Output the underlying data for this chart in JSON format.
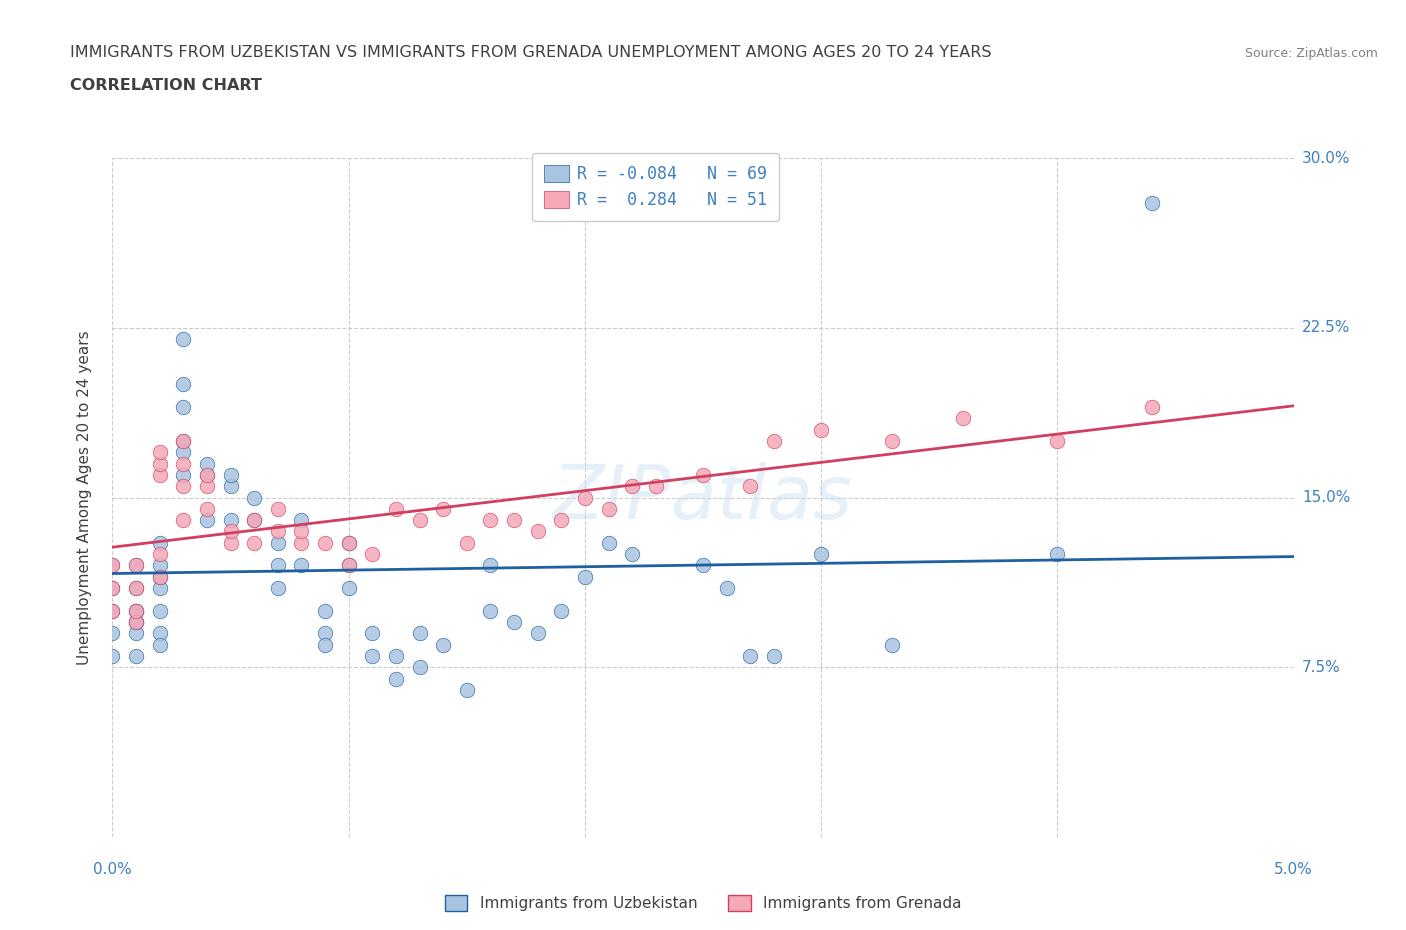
{
  "title_line1": "IMMIGRANTS FROM UZBEKISTAN VS IMMIGRANTS FROM GRENADA UNEMPLOYMENT AMONG AGES 20 TO 24 YEARS",
  "title_line2": "CORRELATION CHART",
  "source": "Source: ZipAtlas.com",
  "ylabel": "Unemployment Among Ages 20 to 24 years",
  "x_min": 0.0,
  "x_max": 0.05,
  "y_min": 0.0,
  "y_max": 0.3,
  "x_ticks": [
    0.0,
    0.01,
    0.02,
    0.03,
    0.04,
    0.05
  ],
  "y_ticks": [
    0.0,
    0.075,
    0.15,
    0.225,
    0.3
  ],
  "y_tick_labels": [
    "",
    "7.5%",
    "15.0%",
    "22.5%",
    "30.0%"
  ],
  "color_uzbekistan": "#a8c4e0",
  "color_grenada": "#f4a8b8",
  "line_color_uzbekistan": "#2060a0",
  "line_color_grenada": "#d04060",
  "R_uzbekistan": -0.084,
  "N_uzbekistan": 69,
  "R_grenada": 0.284,
  "N_grenada": 51,
  "legend_label_uzbekistan": "Immigrants from Uzbekistan",
  "legend_label_grenada": "Immigrants from Grenada",
  "uzbekistan_x": [
    0.0,
    0.0,
    0.0,
    0.0,
    0.0,
    0.001,
    0.001,
    0.001,
    0.001,
    0.001,
    0.001,
    0.001,
    0.001,
    0.002,
    0.002,
    0.002,
    0.002,
    0.002,
    0.002,
    0.002,
    0.003,
    0.003,
    0.003,
    0.003,
    0.003,
    0.003,
    0.004,
    0.004,
    0.004,
    0.005,
    0.005,
    0.005,
    0.006,
    0.006,
    0.007,
    0.007,
    0.007,
    0.008,
    0.008,
    0.009,
    0.009,
    0.009,
    0.01,
    0.01,
    0.01,
    0.011,
    0.011,
    0.012,
    0.012,
    0.013,
    0.013,
    0.014,
    0.015,
    0.016,
    0.016,
    0.017,
    0.018,
    0.019,
    0.02,
    0.021,
    0.022,
    0.025,
    0.026,
    0.027,
    0.028,
    0.03,
    0.033,
    0.04,
    0.044
  ],
  "uzbekistan_y": [
    0.09,
    0.1,
    0.11,
    0.12,
    0.08,
    0.1,
    0.11,
    0.12,
    0.095,
    0.08,
    0.09,
    0.1,
    0.095,
    0.1,
    0.11,
    0.115,
    0.12,
    0.09,
    0.085,
    0.13,
    0.16,
    0.175,
    0.17,
    0.19,
    0.2,
    0.22,
    0.14,
    0.16,
    0.165,
    0.14,
    0.155,
    0.16,
    0.14,
    0.15,
    0.13,
    0.12,
    0.11,
    0.14,
    0.12,
    0.1,
    0.09,
    0.085,
    0.12,
    0.11,
    0.13,
    0.08,
    0.09,
    0.08,
    0.07,
    0.075,
    0.09,
    0.085,
    0.065,
    0.12,
    0.1,
    0.095,
    0.09,
    0.1,
    0.115,
    0.13,
    0.125,
    0.12,
    0.11,
    0.08,
    0.08,
    0.125,
    0.085,
    0.125,
    0.28
  ],
  "grenada_x": [
    0.0,
    0.0,
    0.0,
    0.001,
    0.001,
    0.001,
    0.001,
    0.002,
    0.002,
    0.002,
    0.002,
    0.002,
    0.003,
    0.003,
    0.003,
    0.003,
    0.004,
    0.004,
    0.004,
    0.005,
    0.005,
    0.006,
    0.006,
    0.007,
    0.007,
    0.008,
    0.008,
    0.009,
    0.01,
    0.01,
    0.011,
    0.012,
    0.013,
    0.014,
    0.015,
    0.016,
    0.017,
    0.018,
    0.019,
    0.02,
    0.021,
    0.022,
    0.023,
    0.025,
    0.027,
    0.028,
    0.03,
    0.033,
    0.036,
    0.04,
    0.044
  ],
  "grenada_y": [
    0.1,
    0.11,
    0.12,
    0.095,
    0.1,
    0.11,
    0.12,
    0.115,
    0.125,
    0.16,
    0.165,
    0.17,
    0.14,
    0.155,
    0.165,
    0.175,
    0.145,
    0.155,
    0.16,
    0.13,
    0.135,
    0.13,
    0.14,
    0.135,
    0.145,
    0.13,
    0.135,
    0.13,
    0.12,
    0.13,
    0.125,
    0.145,
    0.14,
    0.145,
    0.13,
    0.14,
    0.14,
    0.135,
    0.14,
    0.15,
    0.145,
    0.155,
    0.155,
    0.16,
    0.155,
    0.175,
    0.18,
    0.175,
    0.185,
    0.175,
    0.19
  ],
  "background_color": "#ffffff",
  "grid_color": "#cccccc",
  "title_color": "#404040",
  "tick_color": "#4080c0",
  "watermark_text": "ZIPatlas",
  "watermark_color": "#c8dff0",
  "watermark_alpha": 0.45
}
